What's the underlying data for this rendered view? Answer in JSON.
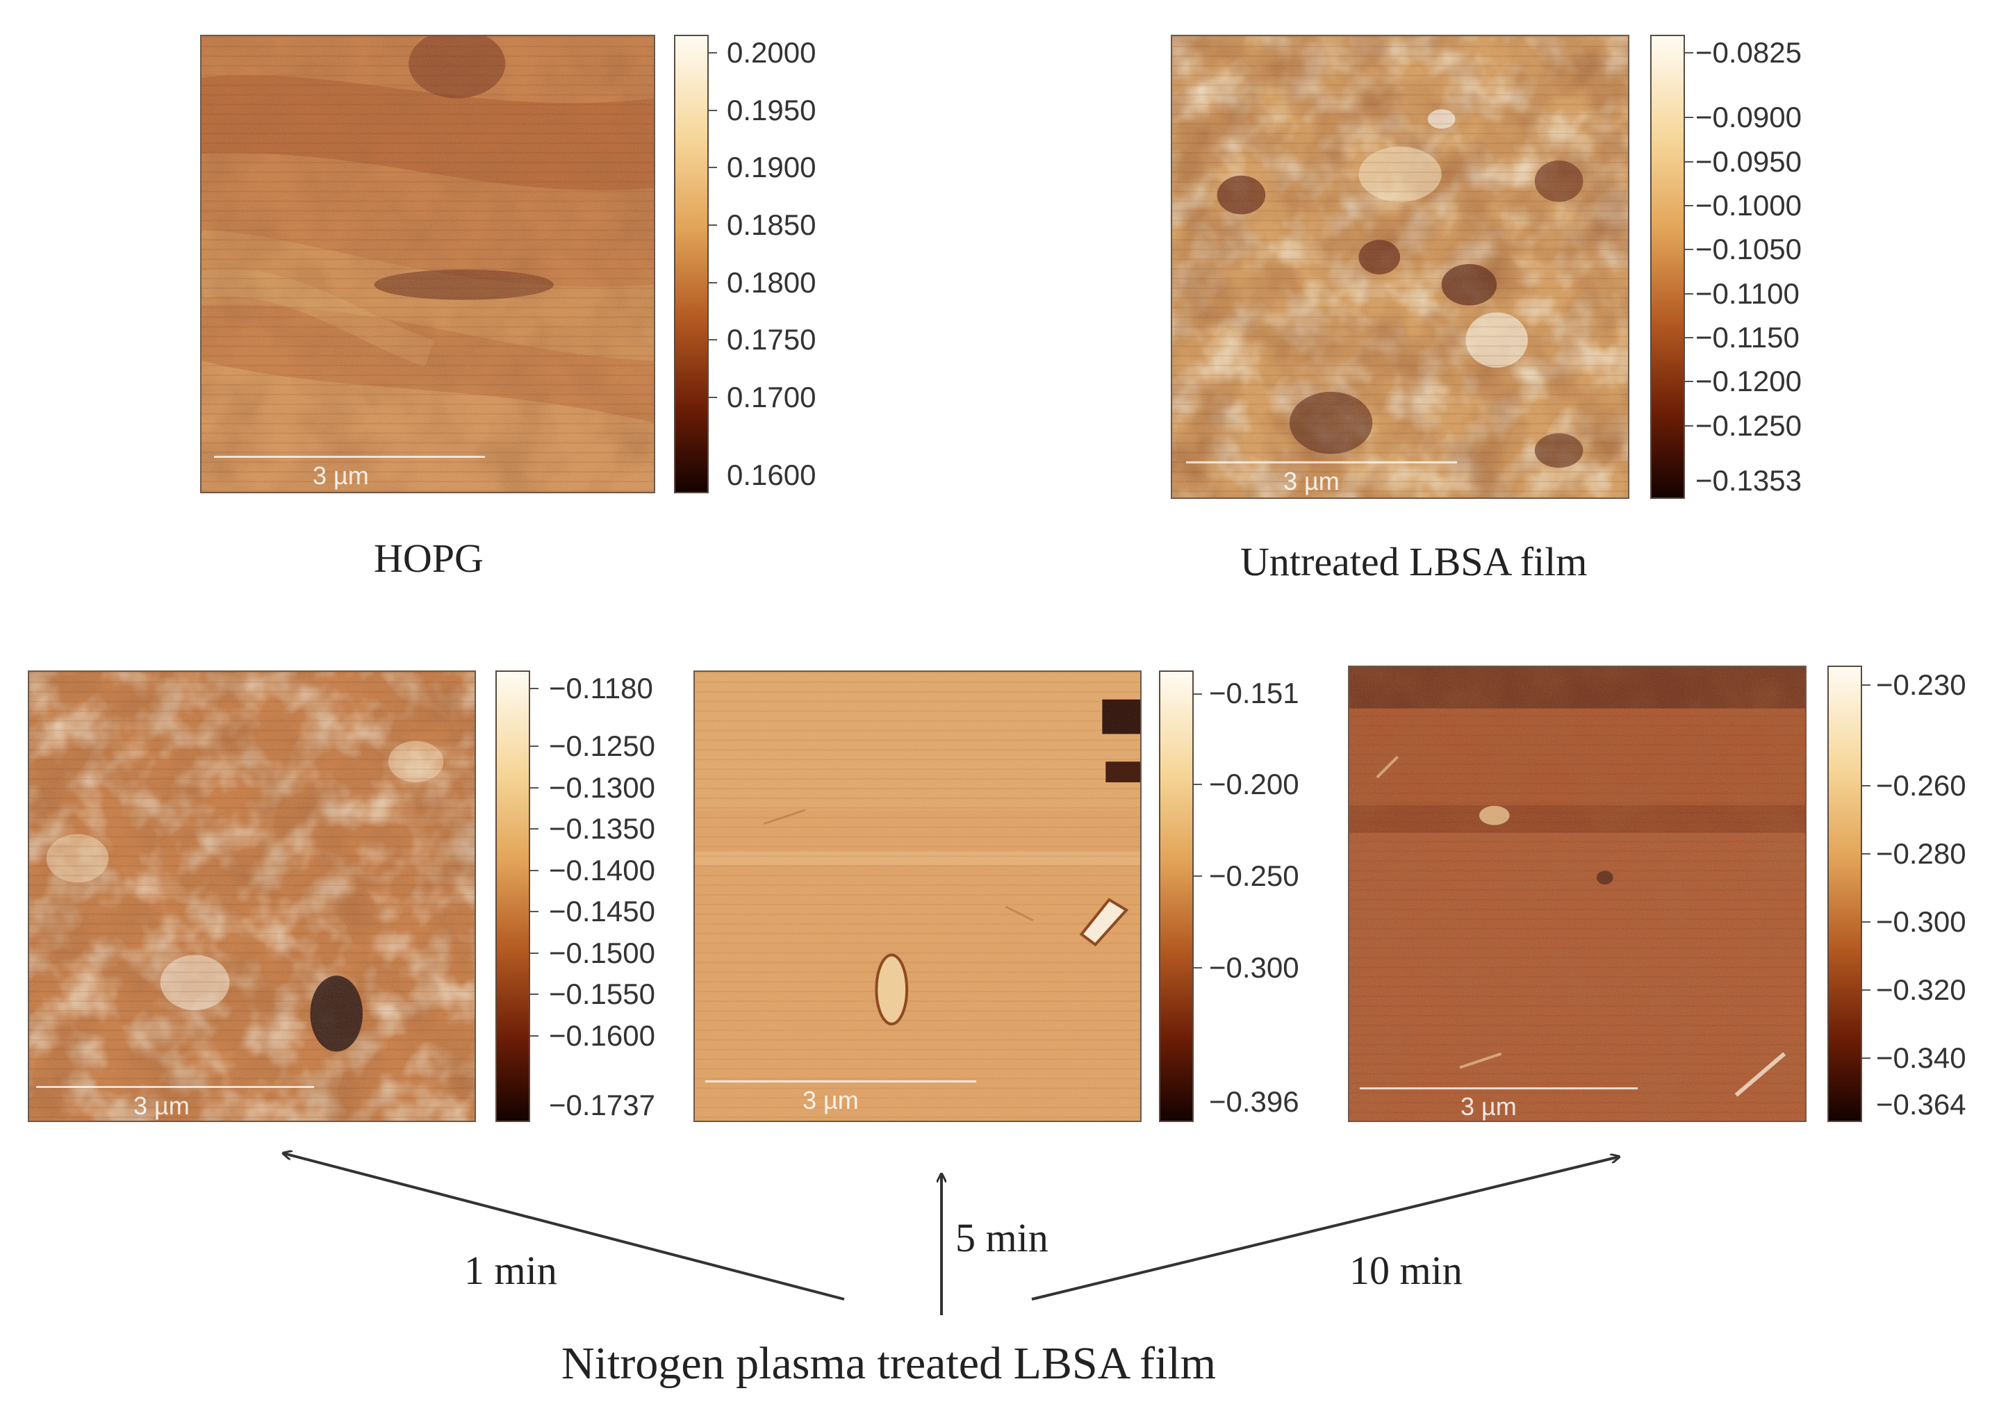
{
  "panels": {
    "hopg": {
      "caption": "HOPG",
      "scale_label": "3 µm",
      "colorbar_ticks": [
        "0.2000",
        "0.1950",
        "0.1900",
        "0.1850",
        "0.1800",
        "0.1750",
        "0.1700",
        "0.1600"
      ]
    },
    "untreated": {
      "caption": "Untreated LBSA film",
      "scale_label": "3 µm",
      "colorbar_ticks": [
        "−0.0825",
        "−0.0900",
        "−0.0950",
        "−0.1000",
        "−0.1050",
        "−0.1100",
        "−0.1150",
        "−0.1200",
        "−0.1250",
        "−0.1353"
      ]
    },
    "min1": {
      "scale_label": "3 µm",
      "colorbar_ticks": [
        "−0.1180",
        "−0.1250",
        "−0.1300",
        "−0.1350",
        "−0.1400",
        "−0.1450",
        "−0.1500",
        "−0.1550",
        "−0.1600",
        "−0.1737"
      ]
    },
    "min5": {
      "scale_label": "3 µm",
      "colorbar_ticks": [
        "−0.151",
        "−0.200",
        "−0.250",
        "−0.300",
        "−0.396"
      ]
    },
    "min10": {
      "scale_label": "3 µm",
      "colorbar_ticks": [
        "−0.230",
        "−0.260",
        "−0.280",
        "−0.300",
        "−0.320",
        "−0.340",
        "−0.364"
      ]
    }
  },
  "arrows": {
    "label_1min": "1 min",
    "label_5min": "5 min",
    "label_10min": "10 min"
  },
  "bottom_caption": "Nitrogen plasma treated LBSA film",
  "colors": {
    "light": "#fff6e6",
    "mid": "#d9934a",
    "dark": "#1a0400"
  }
}
